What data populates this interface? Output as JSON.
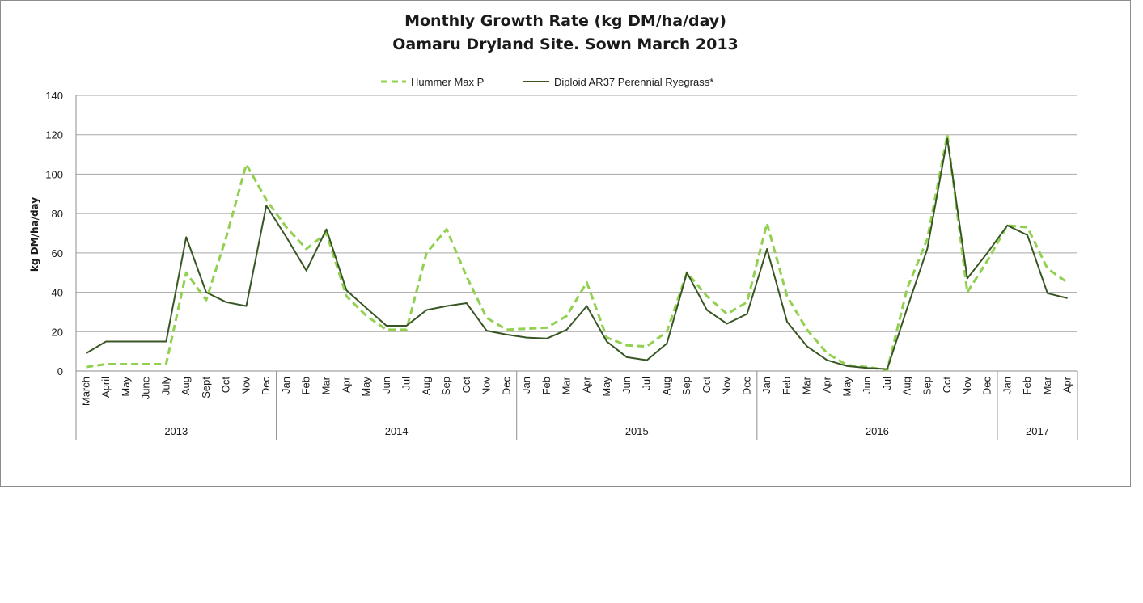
{
  "chart_data": {
    "type": "line",
    "title": "Monthly Growth Rate (kg DM/ha/day)",
    "subtitle": "Oamaru Dryland Site. Sown March 2013",
    "ylabel": "kg DM/ha/day",
    "xlabel": "",
    "ylim": [
      0,
      140
    ],
    "yticks": [
      0,
      20,
      40,
      60,
      80,
      100,
      120,
      140
    ],
    "grid": true,
    "legend_position": "top-center",
    "categories": [
      "March",
      "April",
      "May",
      "June",
      "July",
      "Aug",
      "Sept",
      "Oct",
      "Nov",
      "Dec",
      "Jan",
      "Feb",
      "Mar",
      "Apr",
      "May",
      "Jun",
      "Jul",
      "Aug",
      "Sep",
      "Oct",
      "Nov",
      "Dec",
      "Jan",
      "Feb",
      "Mar",
      "Apr",
      "May",
      "Jun",
      "Jul",
      "Aug",
      "Sep",
      "Oct",
      "Nov",
      "Dec",
      "Jan",
      "Feb",
      "Mar",
      "Apr",
      "May",
      "Jun",
      "Jul",
      "Aug",
      "Sep",
      "Oct",
      "Nov",
      "Dec",
      "Jan",
      "Feb",
      "Mar",
      "Apr"
    ],
    "year_groups": [
      {
        "label": "2013",
        "count": 10
      },
      {
        "label": "2014",
        "count": 12
      },
      {
        "label": "2015",
        "count": 12
      },
      {
        "label": "2016",
        "count": 12
      },
      {
        "label": "2017",
        "count": 4
      }
    ],
    "series": [
      {
        "name": "Hummer Max P",
        "color": "#92d050",
        "dash": "dashed",
        "values": [
          2,
          3.5,
          3.5,
          3.5,
          3.5,
          50,
          36,
          68,
          105,
          87,
          73,
          62,
          70,
          38,
          28,
          21,
          21,
          60,
          72,
          48,
          27,
          21,
          21.5,
          22,
          28,
          45,
          17,
          13,
          12.5,
          20,
          50,
          38,
          29,
          35,
          75,
          38,
          21,
          9,
          3,
          2,
          0.5,
          42,
          67,
          120,
          40,
          56,
          74,
          73,
          52,
          45
        ]
      },
      {
        "name": "Diploid AR37 Perennial Ryegrass*",
        "color": "#375623",
        "dash": "solid",
        "values": [
          9,
          15,
          15,
          15,
          15,
          68,
          40,
          35,
          33,
          84,
          68,
          51,
          72,
          41,
          32,
          23,
          23,
          31,
          33,
          34.5,
          20.5,
          18.5,
          17,
          16.5,
          21,
          33,
          15,
          7,
          5.5,
          14,
          50,
          31,
          24,
          29,
          62,
          25,
          12.5,
          5.5,
          2.5,
          1.5,
          1,
          32,
          62,
          118,
          47,
          60,
          74,
          69,
          39.5,
          37
        ]
      }
    ]
  }
}
